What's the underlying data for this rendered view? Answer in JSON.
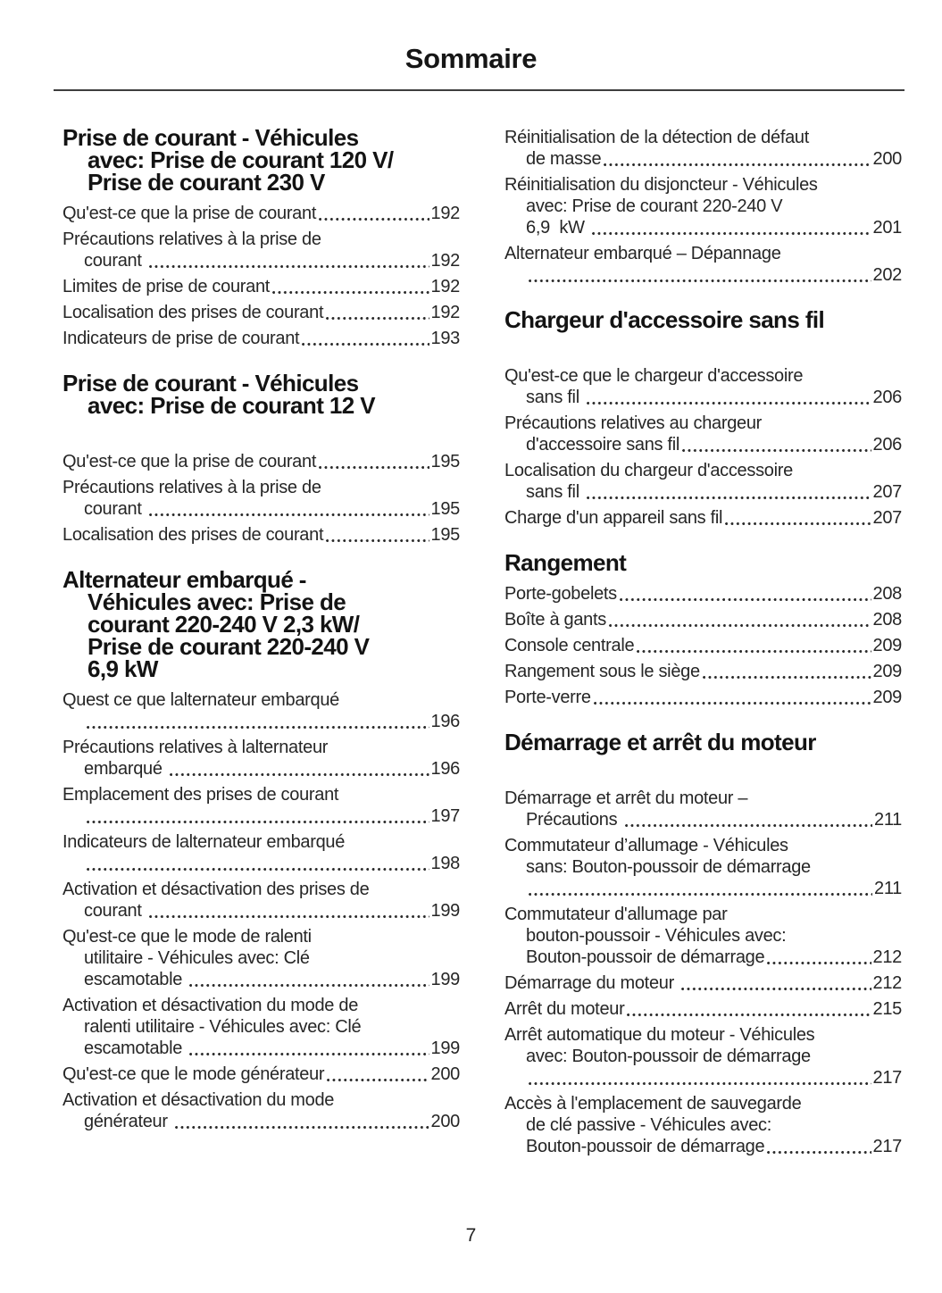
{
  "page": {
    "title": "Sommaire",
    "page_number": "7"
  },
  "columns": {
    "left": {
      "sections": [
        {
          "heading_lines": [
            "Prise de courant - Véhicules",
            "avec: Prise de courant 120 V/",
            "Prise de courant 230 V"
          ],
          "gap_after_heading": false,
          "entries": [
            {
              "lines": [
                {
                  "text": "Qu'est-ce que la prise de courant",
                  "page": "192"
                }
              ]
            },
            {
              "lines": [
                {
                  "text": "Précautions relatives à la prise de"
                },
                {
                  "text": "courant ",
                  "page": "192"
                }
              ]
            },
            {
              "lines": [
                {
                  "text": "Limites de prise de courant",
                  "page": "192"
                }
              ]
            },
            {
              "lines": [
                {
                  "text": "Localisation des prises de courant",
                  "page": "192"
                }
              ]
            },
            {
              "lines": [
                {
                  "text": "Indicateurs de prise de courant",
                  "page": "193"
                }
              ]
            }
          ]
        },
        {
          "heading_lines": [
            "Prise de courant - Véhicules",
            "avec: Prise de courant 12 V"
          ],
          "gap_after_heading": true,
          "entries": [
            {
              "lines": [
                {
                  "text": "Qu'est-ce que la prise de courant",
                  "page": "195"
                }
              ]
            },
            {
              "lines": [
                {
                  "text": "Précautions relatives à la prise de"
                },
                {
                  "text": "courant ",
                  "page": "195"
                }
              ]
            },
            {
              "lines": [
                {
                  "text": "Localisation des prises de courant",
                  "page": "195"
                }
              ]
            }
          ]
        },
        {
          "heading_lines": [
            "Alternateur embarqué -",
            "Véhicules avec: Prise de",
            "courant 220-240 V 2,3 kW/",
            "Prise de courant 220-240 V",
            "6,9 kW"
          ],
          "gap_after_heading": false,
          "entries": [
            {
              "lines": [
                {
                  "text": "Quest ce que lalternateur embarqué"
                },
                {
                  "text": "",
                  "page": "196"
                }
              ]
            },
            {
              "lines": [
                {
                  "text": "Précautions relatives à lalternateur"
                },
                {
                  "text": "embarqué ",
                  "page": "196"
                }
              ]
            },
            {
              "lines": [
                {
                  "text": "Emplacement des prises de courant"
                },
                {
                  "text": "",
                  "page": "197"
                }
              ]
            },
            {
              "lines": [
                {
                  "text": "Indicateurs de lalternateur embarqué"
                },
                {
                  "text": "",
                  "page": "198"
                }
              ]
            },
            {
              "lines": [
                {
                  "text": "Activation et désactivation des prises de"
                },
                {
                  "text": "courant ",
                  "page": "199"
                }
              ]
            },
            {
              "lines": [
                {
                  "text": "Qu'est-ce que le mode de ralenti"
                },
                {
                  "text": "utilitaire - Véhicules avec: Clé"
                },
                {
                  "text": "escamotable ",
                  "page": "199"
                }
              ]
            },
            {
              "lines": [
                {
                  "text": "Activation et désactivation du mode de"
                },
                {
                  "text": "ralenti utilitaire - Véhicules avec: Clé"
                },
                {
                  "text": "escamotable ",
                  "page": "199"
                }
              ]
            },
            {
              "lines": [
                {
                  "text": "Qu'est-ce que le mode générateur",
                  "page": "200"
                }
              ]
            },
            {
              "lines": [
                {
                  "text": "Activation et désactivation du mode"
                },
                {
                  "text": "générateur ",
                  "page": "200"
                }
              ]
            }
          ]
        }
      ]
    },
    "right": {
      "sections": [
        {
          "heading_lines": [],
          "gap_after_heading": false,
          "entries": [
            {
              "lines": [
                {
                  "text": "Réinitialisation de la détection de défaut"
                },
                {
                  "text": "de masse",
                  "page": "200"
                }
              ]
            },
            {
              "lines": [
                {
                  "text": "Réinitialisation du disjoncteur - Véhicules"
                },
                {
                  "text": "avec: Prise de courant 220-240 V"
                },
                {
                  "text": "6,9  kW ",
                  "page": "201"
                }
              ]
            },
            {
              "lines": [
                {
                  "text": "Alternateur embarqué – Dépannage"
                },
                {
                  "text": "",
                  "page": "202"
                }
              ]
            }
          ]
        },
        {
          "heading_lines": [
            "Chargeur d'accessoire sans fil"
          ],
          "gap_after_heading": true,
          "entries": [
            {
              "lines": [
                {
                  "text": "Qu'est-ce que le chargeur d'accessoire"
                },
                {
                  "text": "sans fil ",
                  "page": "206"
                }
              ]
            },
            {
              "lines": [
                {
                  "text": "Précautions relatives au chargeur"
                },
                {
                  "text": "d'accessoire sans fil",
                  "page": "206"
                }
              ]
            },
            {
              "lines": [
                {
                  "text": "Localisation du chargeur d'accessoire"
                },
                {
                  "text": "sans fil ",
                  "page": "207"
                }
              ]
            },
            {
              "lines": [
                {
                  "text": "Charge d'un appareil sans fil",
                  "page": "207"
                }
              ]
            }
          ]
        },
        {
          "heading_lines": [
            "Rangement"
          ],
          "gap_after_heading": false,
          "entries": [
            {
              "lines": [
                {
                  "text": "Porte-gobelets",
                  "page": "208"
                }
              ]
            },
            {
              "lines": [
                {
                  "text": "Boîte à gants",
                  "page": "208"
                }
              ]
            },
            {
              "lines": [
                {
                  "text": "Console centrale",
                  "page": "209"
                }
              ]
            },
            {
              "lines": [
                {
                  "text": "Rangement sous le siège",
                  "page": "209"
                }
              ]
            },
            {
              "lines": [
                {
                  "text": "Porte-verre",
                  "page": "209"
                }
              ]
            }
          ]
        },
        {
          "heading_lines": [
            "Démarrage et arrêt du moteur"
          ],
          "gap_after_heading": true,
          "entries": [
            {
              "lines": [
                {
                  "text": "Démarrage et arrêt du moteur –"
                },
                {
                  "text": "Précautions ",
                  "page": "211"
                }
              ]
            },
            {
              "lines": [
                {
                  "text": "Commutateur d’allumage - Véhicules"
                },
                {
                  "text": "sans: Bouton-poussoir de démarrage"
                },
                {
                  "text": "",
                  "page": "211"
                }
              ]
            },
            {
              "lines": [
                {
                  "text": "Commutateur d'allumage par"
                },
                {
                  "text": "bouton-poussoir - Véhicules avec:"
                },
                {
                  "text": "Bouton-poussoir de démarrage",
                  "page": "212"
                }
              ]
            },
            {
              "lines": [
                {
                  "text": "Démarrage du moteur ",
                  "page": "212"
                }
              ]
            },
            {
              "lines": [
                {
                  "text": "Arrêt du moteur",
                  "page": "215"
                }
              ]
            },
            {
              "lines": [
                {
                  "text": "Arrêt automatique du moteur - Véhicules"
                },
                {
                  "text": "avec: Bouton-poussoir de démarrage"
                },
                {
                  "text": "",
                  "page": "217"
                }
              ]
            },
            {
              "lines": [
                {
                  "text": "Accès à l'emplacement de sauvegarde"
                },
                {
                  "text": "de clé passive - Véhicules avec:"
                },
                {
                  "text": "Bouton-poussoir de démarrage",
                  "page": "217"
                }
              ]
            }
          ]
        }
      ]
    }
  }
}
